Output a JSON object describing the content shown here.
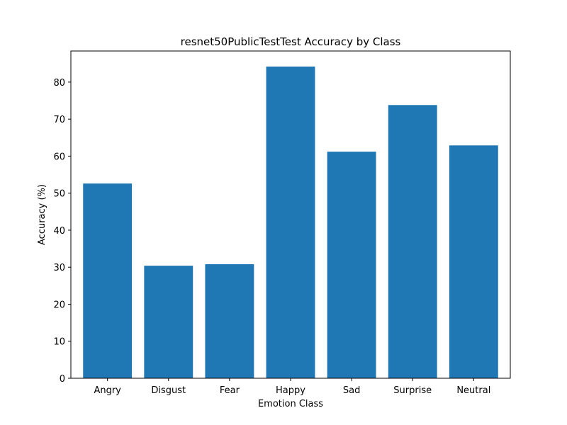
{
  "chart_data": {
    "type": "bar",
    "title": "resnet50PublicTestTest Accuracy by Class",
    "xlabel": "Emotion Class",
    "ylabel": "Accuracy (%)",
    "categories": [
      "Angry",
      "Disgust",
      "Fear",
      "Happy",
      "Sad",
      "Surprise",
      "Neutral"
    ],
    "values": [
      52.6,
      30.4,
      30.8,
      84.2,
      61.2,
      73.8,
      62.9
    ],
    "ylim": [
      0,
      88.4
    ],
    "yticks": [
      0,
      10,
      20,
      30,
      40,
      50,
      60,
      70,
      80
    ],
    "grid": false,
    "bar_color": "#1f77b4"
  }
}
